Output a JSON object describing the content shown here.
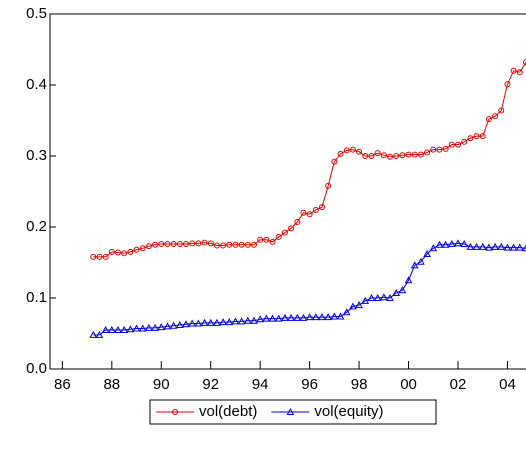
{
  "chart_data": {
    "type": "line",
    "x": [
      87.25,
      87.5,
      87.75,
      88,
      88.25,
      88.5,
      88.75,
      89,
      89.25,
      89.5,
      89.75,
      90,
      90.25,
      90.5,
      90.75,
      91,
      91.25,
      91.5,
      91.75,
      92,
      92.25,
      92.5,
      92.75,
      93,
      93.25,
      93.5,
      93.75,
      94,
      94.25,
      94.5,
      94.75,
      95,
      95.25,
      95.5,
      95.75,
      96,
      96.25,
      96.5,
      96.75,
      97,
      97.25,
      97.5,
      97.75,
      98,
      98.25,
      98.5,
      98.75,
      99,
      99.25,
      99.5,
      99.75,
      100,
      100.25,
      100.5,
      100.75,
      101,
      101.25,
      101.5,
      101.75,
      102,
      102.25,
      102.5,
      102.75,
      103,
      103.25,
      103.5,
      103.75,
      104,
      104.25,
      104.5,
      104.75
    ],
    "series": [
      {
        "name": "vol(debt)",
        "color": "#e00000",
        "marker": "circle",
        "values": [
          0.158,
          0.158,
          0.158,
          0.165,
          0.164,
          0.163,
          0.165,
          0.168,
          0.17,
          0.173,
          0.175,
          0.176,
          0.176,
          0.176,
          0.176,
          0.176,
          0.177,
          0.177,
          0.178,
          0.177,
          0.174,
          0.174,
          0.175,
          0.175,
          0.175,
          0.175,
          0.175,
          0.182,
          0.182,
          0.179,
          0.186,
          0.192,
          0.198,
          0.207,
          0.22,
          0.218,
          0.224,
          0.228,
          0.258,
          0.292,
          0.303,
          0.308,
          0.309,
          0.306,
          0.3,
          0.3,
          0.304,
          0.301,
          0.299,
          0.3,
          0.301,
          0.302,
          0.302,
          0.302,
          0.305,
          0.309,
          0.309,
          0.31,
          0.316,
          0.316,
          0.32,
          0.325,
          0.328,
          0.328,
          0.352,
          0.356,
          0.364,
          0.401,
          0.42,
          0.418,
          0.432
        ]
      },
      {
        "name": "vol(equity)",
        "color": "#0000e0",
        "marker": "triangle",
        "values": [
          0.048,
          0.048,
          0.055,
          0.055,
          0.055,
          0.055,
          0.056,
          0.057,
          0.057,
          0.058,
          0.058,
          0.059,
          0.06,
          0.061,
          0.062,
          0.063,
          0.064,
          0.064,
          0.065,
          0.065,
          0.065,
          0.066,
          0.066,
          0.067,
          0.067,
          0.068,
          0.068,
          0.07,
          0.071,
          0.071,
          0.071,
          0.072,
          0.072,
          0.072,
          0.072,
          0.073,
          0.073,
          0.073,
          0.073,
          0.074,
          0.074,
          0.08,
          0.088,
          0.09,
          0.096,
          0.1,
          0.1,
          0.101,
          0.1,
          0.107,
          0.111,
          0.125,
          0.146,
          0.151,
          0.162,
          0.17,
          0.175,
          0.175,
          0.176,
          0.177,
          0.176,
          0.172,
          0.172,
          0.172,
          0.171,
          0.172,
          0.172,
          0.171,
          0.171,
          0.171,
          0.17
        ]
      }
    ],
    "xlim": [
      85.5,
      104.75
    ],
    "xticks": [
      86,
      88,
      90,
      92,
      94,
      96,
      98,
      {
        "value": 100,
        "label": "00"
      },
      {
        "value": 102,
        "label": "02"
      },
      {
        "value": 104,
        "label": "04"
      }
    ],
    "ylim": [
      0,
      0.5
    ],
    "yticks": [
      {
        "value": 0,
        "label": "0.0"
      },
      0.1,
      0.2,
      0.3,
      0.4,
      0.5
    ],
    "grid": false,
    "legend": "bottom"
  }
}
